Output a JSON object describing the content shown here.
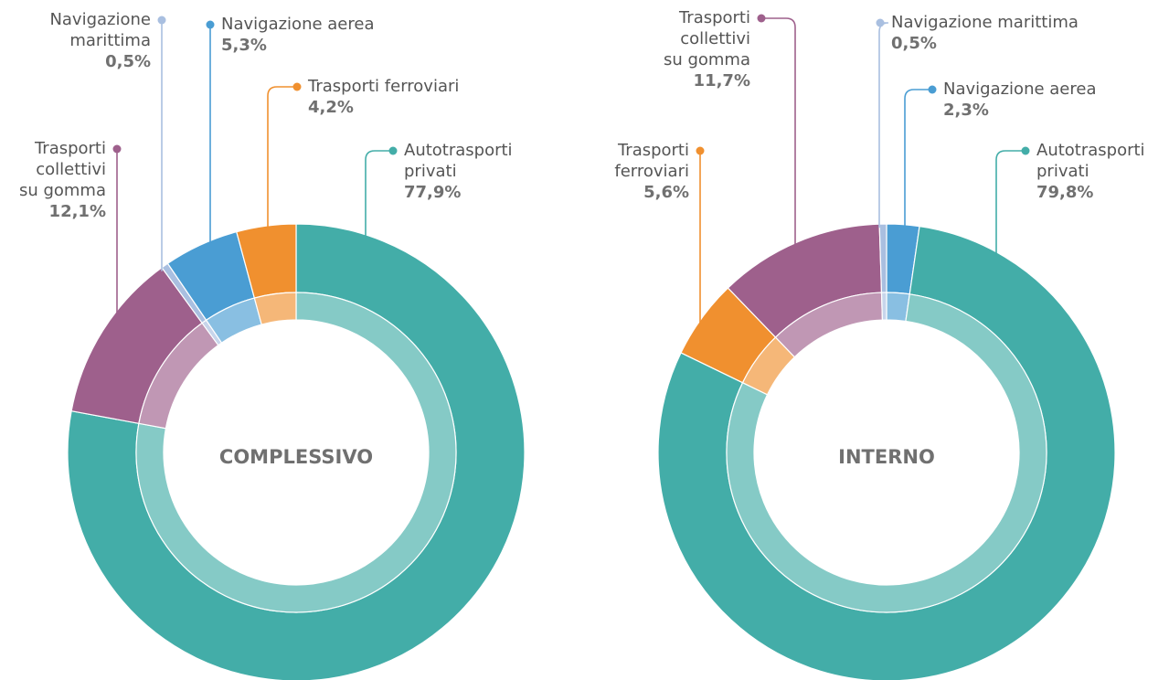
{
  "chart_data": [
    {
      "type": "pie",
      "title": "COMPLESSIVO",
      "categories": [
        "Autotrasporti privati",
        "Trasporti collettivi su gomma",
        "Navigazione marittima",
        "Navigazione aerea",
        "Trasporti ferroviari"
      ],
      "values": [
        77.9,
        12.1,
        0.5,
        5.3,
        4.2
      ],
      "value_labels": [
        "77,9%",
        "12,1%",
        "0,5%",
        "5,3%",
        "4,2%"
      ],
      "colors": [
        "#43ada8",
        "#9e608c",
        "#a9bfe0",
        "#4a9dd3",
        "#f0902f"
      ]
    },
    {
      "type": "pie",
      "title": "INTERNO",
      "categories": [
        "Navigazione aerea",
        "Autotrasporti privati",
        "Trasporti ferroviari",
        "Trasporti collettivi su gomma",
        "Navigazione marittima"
      ],
      "values": [
        2.3,
        79.8,
        5.6,
        11.7,
        0.5
      ],
      "value_labels": [
        "2,3%",
        "79,8%",
        "5,6%",
        "11,7%",
        "0,5%"
      ],
      "colors": [
        "#4a9dd3",
        "#43ada8",
        "#f0902f",
        "#9e608c",
        "#a9bfe0"
      ]
    }
  ]
}
